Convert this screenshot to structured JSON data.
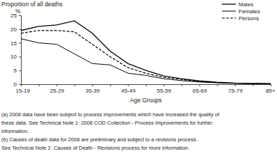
{
  "chart_data": {
    "type": "line",
    "title": "Proportion of all deaths",
    "y_label": "%",
    "x_label": "Age Groups",
    "categories": [
      "15-19",
      null,
      "25-29",
      null,
      "35-39",
      null,
      "45-49",
      null,
      "55-59",
      null,
      "65-69",
      null,
      "75-79",
      null,
      "85+"
    ],
    "series": [
      {
        "name": "Males",
        "color": "#000000",
        "line_style": "solid",
        "values": [
          19.5,
          21,
          21.5,
          23,
          18.5,
          12,
          7.5,
          5,
          3,
          2,
          1.2,
          0.7,
          0.4,
          0.3,
          0.2
        ]
      },
      {
        "name": "Females",
        "color": "#000000",
        "line_style": "solid",
        "values": [
          16.5,
          15,
          14.5,
          11,
          7.5,
          7,
          4,
          3.2,
          2,
          1.3,
          0.8,
          0.5,
          0.3,
          0.2,
          0.1
        ]
      },
      {
        "name": "Persons",
        "color": "#000000",
        "line_style": "dashed",
        "values": [
          18.5,
          19.5,
          19.5,
          19,
          14.5,
          10,
          6,
          4,
          2.5,
          1.7,
          1,
          0.6,
          0.35,
          0.25,
          0.15
        ]
      }
    ],
    "ylim": [
      0,
      25
    ],
    "yticks": [
      0,
      5,
      10,
      15,
      20,
      25
    ],
    "grid": false,
    "legend": "upper right",
    "annotations": [
      "(a) 2008 data have been subject to process improvements which have increased the quality of",
      "these data. See Technical Note 1: 2008 COD Collection - Process Improvements for further",
      "information.",
      "(b) Causes of death data for 2008 are preliminary and subject to a revisions process.",
      "See Technical Note 2: Causes of Death - Revisions process for more information."
    ]
  }
}
